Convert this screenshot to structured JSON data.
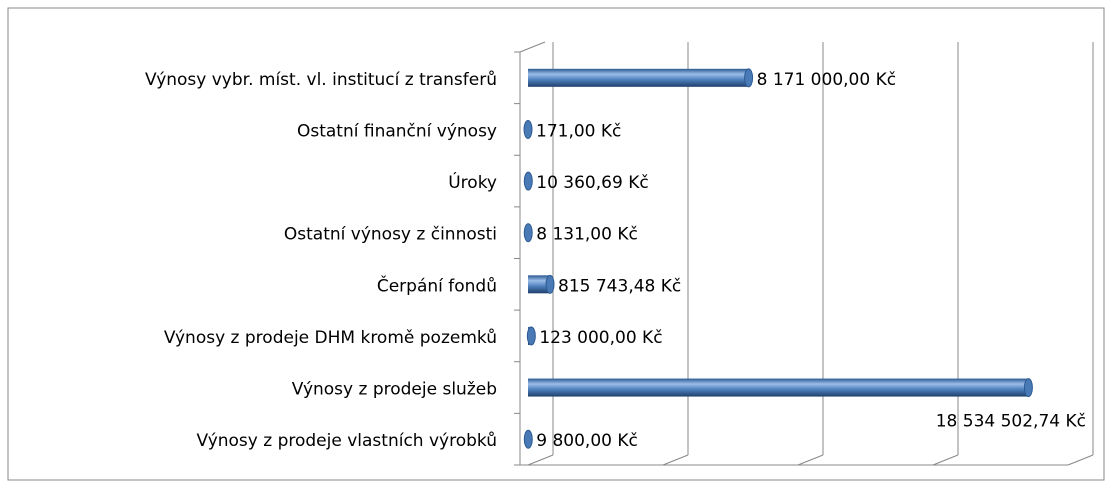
{
  "chart_data": {
    "type": "bar",
    "orientation": "horizontal",
    "categories": [
      "Výnosy vybr. míst. vl. institucí z transferů",
      "Ostatní finanční výnosy",
      "Úroky",
      "Ostatní výnosy z činnosti",
      "Čerpání fondů",
      "Výnosy z prodeje DHM kromě pozemků",
      "Výnosy z prodeje služeb",
      "Výnosy z prodeje vlastních výrobků"
    ],
    "values": [
      8171000,
      171,
      10360.69,
      8131,
      815743.48,
      123000,
      18534502.74,
      9800
    ],
    "value_labels": [
      "8 171 000,00 Kč",
      "171,00 Kč",
      "10 360,69 Kč",
      "8 131,00 Kč",
      "815 743,48 Kč",
      "123 000,00 Kč",
      "18 534 502,74 Kč",
      "9 800,00 Kč"
    ],
    "color": "#4f81bd",
    "xlim": [
      0,
      20000000
    ],
    "xticks": [
      0,
      5000000,
      10000000,
      15000000,
      20000000
    ],
    "grid": true
  }
}
